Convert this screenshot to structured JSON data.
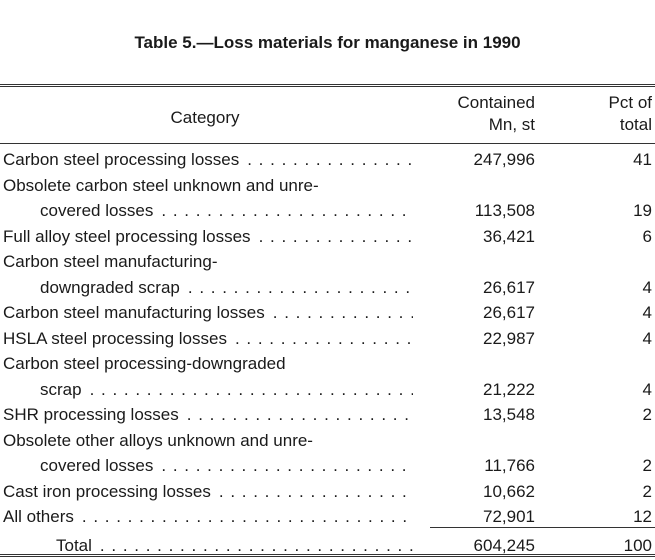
{
  "title": "Table 5.—Loss materials for manganese in 1990",
  "columns": {
    "category": "Category",
    "contained": [
      "Contained",
      "Mn, st"
    ],
    "pct": [
      "Pct of",
      "total"
    ]
  },
  "rows": [
    {
      "lines": [
        "Carbon steel processing losses"
      ],
      "contained": "247,996",
      "pct": "41"
    },
    {
      "lines": [
        "Obsolete carbon steel unknown and unre-",
        "covered losses"
      ],
      "contained": "113,508",
      "pct": "19"
    },
    {
      "lines": [
        "Full alloy steel processing losses"
      ],
      "contained": "36,421",
      "pct": "6"
    },
    {
      "lines": [
        "Carbon steel manufacturing-",
        "downgraded scrap"
      ],
      "contained": "26,617",
      "pct": "4"
    },
    {
      "lines": [
        "Carbon steel manufacturing losses"
      ],
      "contained": "26,617",
      "pct": "4"
    },
    {
      "lines": [
        "HSLA steel processing losses"
      ],
      "contained": "22,987",
      "pct": "4"
    },
    {
      "lines": [
        "Carbon steel processing-downgraded",
        "scrap"
      ],
      "contained": "21,222",
      "pct": "4"
    },
    {
      "lines": [
        "SHR processing losses"
      ],
      "contained": "13,548",
      "pct": "2"
    },
    {
      "lines": [
        "Obsolete other alloys unknown and unre-",
        "covered losses"
      ],
      "contained": "11,766",
      "pct": "2"
    },
    {
      "lines": [
        "Cast iron processing losses"
      ],
      "contained": "10,662",
      "pct": "2"
    },
    {
      "lines": [
        "All others"
      ],
      "contained": "72,901",
      "pct": "12"
    }
  ],
  "total": {
    "label": "Total",
    "contained": "604,245",
    "pct": "100"
  }
}
